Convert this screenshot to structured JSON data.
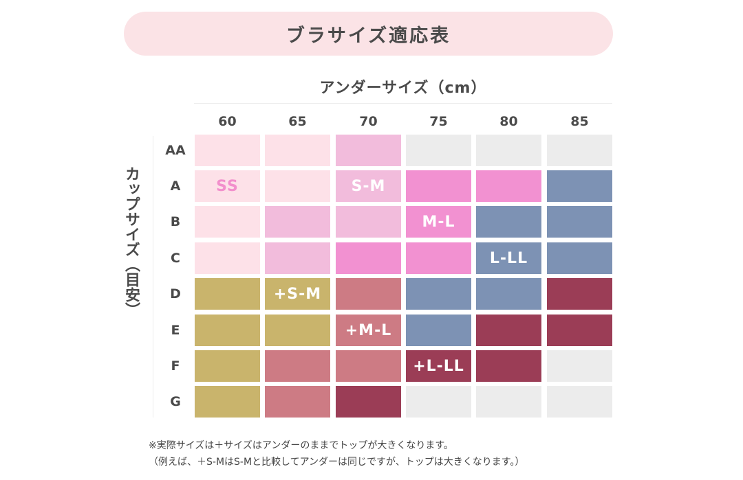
{
  "title": "ブラサイズ適応表",
  "under_size_label": "アンダーサイズ（cm）",
  "cup_size_label": "カップサイズ（目安）",
  "under_sizes": [
    "60",
    "65",
    "70",
    "75",
    "80",
    "85"
  ],
  "cup_sizes": [
    "AA",
    "A",
    "B",
    "C",
    "D",
    "E",
    "F",
    "G"
  ],
  "colors": {
    "light_pink": "#fde1e8",
    "pink": "#f2bcdc",
    "magenta": "#f291d1",
    "blue_gray": "#7d92b4",
    "gold": "#c9b46c",
    "rose": "#cd7b84",
    "wine": "#9b3d56",
    "gray": "#ececec"
  },
  "grid": [
    [
      "light_pink",
      "light_pink",
      "pink",
      "gray",
      "gray",
      "gray"
    ],
    [
      "light_pink",
      "light_pink",
      "pink",
      "magenta",
      "magenta",
      "blue_gray"
    ],
    [
      "light_pink",
      "pink",
      "pink",
      "magenta",
      "blue_gray",
      "blue_gray"
    ],
    [
      "light_pink",
      "pink",
      "magenta",
      "magenta",
      "blue_gray",
      "blue_gray"
    ],
    [
      "gold",
      "gold",
      "rose",
      "blue_gray",
      "blue_gray",
      "wine"
    ],
    [
      "gold",
      "gold",
      "rose",
      "blue_gray",
      "wine",
      "wine"
    ],
    [
      "gold",
      "rose",
      "rose",
      "wine",
      "wine",
      "gray"
    ],
    [
      "gold",
      "rose",
      "wine",
      "gray",
      "gray",
      "gray"
    ]
  ],
  "labels": [
    {
      "row": 1,
      "col": 0,
      "text": "SS",
      "style": "pinktext"
    },
    {
      "row": 1,
      "col": 2,
      "text": "S-M"
    },
    {
      "row": 2,
      "col": 3,
      "text": "M-L"
    },
    {
      "row": 3,
      "col": 4,
      "text": "L-LL"
    },
    {
      "row": 4,
      "col": 1,
      "text": "+S-M"
    },
    {
      "row": 5,
      "col": 2,
      "text": "+M-L"
    },
    {
      "row": 6,
      "col": 3,
      "text": "+L-LL"
    }
  ],
  "notes": [
    "※実際サイズは＋サイズはアンダーのままでトップが大きくなります。",
    "（例えば、＋S-MはS-Mと比較してアンダーは同じですが、トップは大きくなります。）"
  ]
}
